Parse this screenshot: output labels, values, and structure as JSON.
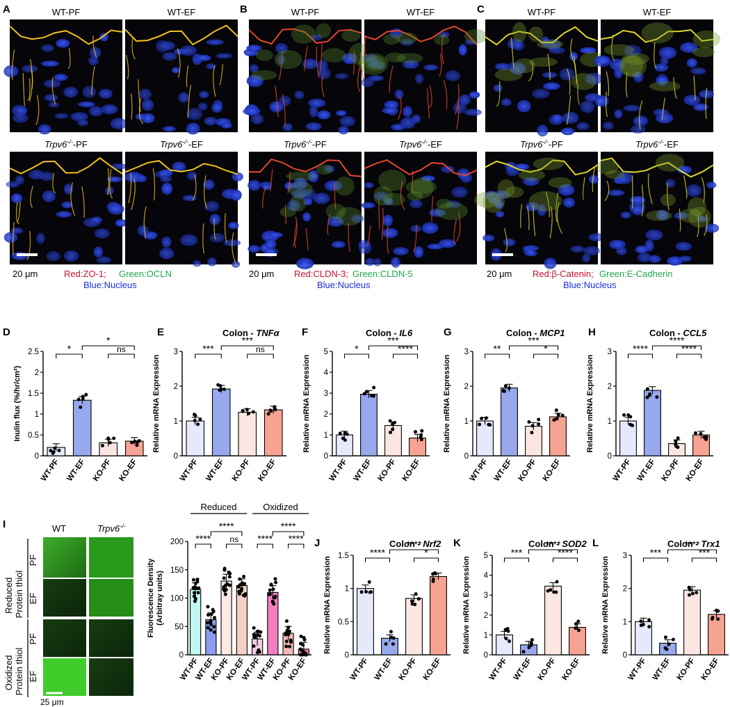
{
  "panel_letters": [
    "A",
    "B",
    "C",
    "D",
    "E",
    "F",
    "G",
    "H",
    "I",
    "J",
    "K",
    "L"
  ],
  "micro": {
    "labels": {
      "wt_pf": "WT-PF",
      "wt_ef": "WT-EF",
      "ko_pf": "Trpv6-/--PF",
      "ko_ef": "Trpv6-/--EF",
      "ko_italic": "Trpv6",
      "ko_sup": "-/-",
      "pf_suffix": "-PF",
      "ef_suffix": "-EF"
    },
    "scale": "20 μm",
    "A": {
      "legend_red": "Red:ZO-1;",
      "legend_green": "Green:OCLN",
      "legend_blue": "Blue:Nucleus"
    },
    "B": {
      "legend_red": "Red:CLDN-3;",
      "legend_green": "Green:CLDN-5",
      "legend_blue": "Blue:Nucleus"
    },
    "C": {
      "legend_red": "Red:β-Catenin;",
      "legend_green": "Green:E-Cadherin",
      "legend_blue": "Blue:Nucleus"
    },
    "colors": {
      "red": "#c8102e",
      "green": "#1fa84a",
      "blue": "#1a2fd6"
    }
  },
  "panel_I": {
    "col_wt": "WT",
    "col_ko_italic": "Trpv6",
    "col_ko_sup": "-/-",
    "group_reduced": "Reduced",
    "group_reduced2": "Protein thiol",
    "group_oxidized": "Oxidized",
    "group_oxidized2": "Protein thiol",
    "row_pf": "PF",
    "row_ef": "EF",
    "scale": "25 μm"
  },
  "chart_data": [
    {
      "id": "D",
      "type": "bar",
      "title": "",
      "ylabel": "Inulin flux (%/hr/cm²)",
      "categories": [
        "WT-PF",
        "WT-EF",
        "KO-PF",
        "KO-EF"
      ],
      "values": [
        0.2,
        1.33,
        0.31,
        0.35
      ],
      "ylim": [
        0,
        2.5
      ],
      "yticks": [
        0,
        0.5,
        1,
        1.5,
        2,
        2.5
      ],
      "sig": [
        {
          "a": 0,
          "b": 1,
          "label": "*"
        },
        {
          "a": 1,
          "b": 3,
          "label": "*"
        },
        {
          "a": 2,
          "b": 3,
          "label": "ns"
        }
      ]
    },
    {
      "id": "E",
      "type": "bar",
      "title": "Colon - ",
      "title_italic": "TNFα",
      "ylabel": "Relative mRNA Expression",
      "categories": [
        "WT-PF",
        "WT-EF",
        "KO-PF",
        "KO-EF"
      ],
      "values": [
        1.0,
        1.92,
        1.25,
        1.32
      ],
      "ylim": [
        0,
        3
      ],
      "yticks": [
        0,
        1,
        2,
        3
      ],
      "sig": [
        {
          "a": 0,
          "b": 1,
          "label": "***"
        },
        {
          "a": 1,
          "b": 3,
          "label": "***"
        },
        {
          "a": 2,
          "b": 3,
          "label": "ns"
        }
      ]
    },
    {
      "id": "F",
      "type": "bar",
      "title": "Colon - ",
      "title_italic": "IL6",
      "ylabel": "Relative mRNA Expression",
      "categories": [
        "WT-PF",
        "WT-EF",
        "KO-PF",
        "KO-EF"
      ],
      "values": [
        1.0,
        2.95,
        1.45,
        0.85
      ],
      "ylim": [
        0,
        5
      ],
      "yticks": [
        0,
        1,
        2,
        3,
        4,
        5
      ],
      "sig": [
        {
          "a": 0,
          "b": 1,
          "label": "*"
        },
        {
          "a": 1,
          "b": 3,
          "label": "***"
        },
        {
          "a": 2,
          "b": 3,
          "label": "****"
        }
      ]
    },
    {
      "id": "G",
      "type": "bar",
      "title": "Colon - ",
      "title_italic": "MCP1",
      "ylabel": "Relative mRNA Expression",
      "categories": [
        "WT-PF",
        "WT-EF",
        "KO-PF",
        "KO-EF"
      ],
      "values": [
        1.0,
        1.95,
        0.85,
        1.12
      ],
      "ylim": [
        0,
        3
      ],
      "yticks": [
        0,
        1,
        2,
        3
      ],
      "sig": [
        {
          "a": 0,
          "b": 1,
          "label": "**"
        },
        {
          "a": 1,
          "b": 3,
          "label": "***"
        },
        {
          "a": 2,
          "b": 3,
          "label": "*"
        }
      ]
    },
    {
      "id": "H",
      "type": "bar",
      "title": "Colon - ",
      "title_italic": "CCL5",
      "ylabel": "Relative mRNA Expression",
      "categories": [
        "WT-PF",
        "WT-EF",
        "KO-PF",
        "KO-EF"
      ],
      "values": [
        1.0,
        1.88,
        0.35,
        0.6
      ],
      "ylim": [
        0,
        3
      ],
      "yticks": [
        0,
        1,
        2,
        3
      ],
      "sig": [
        {
          "a": 0,
          "b": 1,
          "label": "****"
        },
        {
          "a": 1,
          "b": 3,
          "label": "****"
        },
        {
          "a": 2,
          "b": 3,
          "label": "****"
        }
      ]
    },
    {
      "id": "I",
      "type": "bar",
      "title": "",
      "ylabel": "Fluorescence Density",
      "ylabel2": "(Arbitray units)",
      "categories": [
        "WT-PF",
        "WT-EF",
        "KO-PF",
        "KO-EF",
        "WT-PF",
        "WT-EF",
        "KO-PF",
        "KO-EF"
      ],
      "values": [
        115,
        62,
        130,
        122,
        28,
        110,
        38,
        10
      ],
      "ylim": [
        0,
        200
      ],
      "yticks": [
        0,
        50,
        100,
        150,
        200
      ],
      "groups": [
        "Reduced",
        "Oxidized"
      ],
      "sig": [
        {
          "a": 0,
          "b": 1,
          "label": "****"
        },
        {
          "a": 1,
          "b": 3,
          "label": "****"
        },
        {
          "a": 2,
          "b": 3,
          "label": "ns"
        },
        {
          "a": 4,
          "b": 5,
          "label": "****"
        },
        {
          "a": 5,
          "b": 7,
          "label": "****"
        },
        {
          "a": 6,
          "b": 7,
          "label": "****"
        }
      ]
    },
    {
      "id": "J",
      "type": "bar",
      "title": "Colon - ",
      "title_italic": "Nrf2",
      "ylabel": "Relative mRNA Expression",
      "categories": [
        "WT-PF",
        "WT-EF",
        "KO-PF",
        "KO-EF"
      ],
      "values": [
        1.0,
        0.25,
        0.85,
        1.18
      ],
      "ylim": [
        0,
        1.5
      ],
      "yticks": [
        0,
        0.5,
        1,
        1.5
      ],
      "sig": [
        {
          "a": 0,
          "b": 1,
          "label": "****"
        },
        {
          "a": 1,
          "b": 3,
          "label": "****"
        },
        {
          "a": 2,
          "b": 3,
          "label": "*"
        }
      ]
    },
    {
      "id": "K",
      "type": "bar",
      "title": "Colon - ",
      "title_italic": "SOD2",
      "ylabel": "Relative mRNA Expression",
      "categories": [
        "WT-PF",
        "WT-EF",
        "KO-PF",
        "KO-EF"
      ],
      "values": [
        1.0,
        0.5,
        3.45,
        1.38
      ],
      "ylim": [
        0,
        5
      ],
      "yticks": [
        0,
        1,
        2,
        3,
        4,
        5
      ],
      "sig": [
        {
          "a": 0,
          "b": 1,
          "label": "***"
        },
        {
          "a": 1,
          "b": 3,
          "label": "****"
        },
        {
          "a": 2,
          "b": 3,
          "label": "****"
        }
      ]
    },
    {
      "id": "L",
      "type": "bar",
      "title": "Colon - ",
      "title_italic": "Trx1",
      "ylabel": "Relative mRNA Expression",
      "categories": [
        "WT-PF",
        "WT-EF",
        "KO-PF",
        "KO-EF"
      ],
      "values": [
        1.0,
        0.35,
        1.95,
        1.22
      ],
      "ylim": [
        0,
        3
      ],
      "yticks": [
        0,
        1,
        2,
        3
      ],
      "sig": [
        {
          "a": 0,
          "b": 1,
          "label": "***"
        },
        {
          "a": 1,
          "b": 3,
          "label": "****"
        },
        {
          "a": 2,
          "b": 3,
          "label": "***"
        }
      ]
    }
  ],
  "bar_colors": {
    "wt_pf": "#e6e9fb",
    "wt_ef": "#97a8ec",
    "ko_pf": "#fbe6e2",
    "ko_ef": "#f7a393",
    "i_colors": [
      "#c2f6f3",
      "#8e9ced",
      "#fde8e2",
      "#f4cfc3",
      "#f3cde0",
      "#f27ec0",
      "#f6b8b5",
      "#ef7f8c"
    ]
  }
}
